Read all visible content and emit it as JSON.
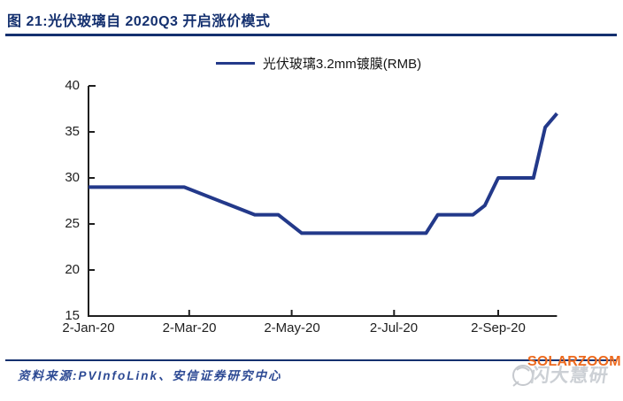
{
  "figure": {
    "title": "图 21:光伏玻璃自 2020Q3 开启涨价模式",
    "source": "资料来源:PVInfoLink、安信证券研究中心",
    "watermark_brand": "SOLARZOOM",
    "watermark_cn": "闪大慧研"
  },
  "colors": {
    "navy": "#14306f",
    "line_navy": "#23398a",
    "axis_black": "#1f1f1f",
    "source_navy": "#2d4a94",
    "watermark_orange": "#ed6a1e",
    "watermark_gray": "#ccd0d5"
  },
  "chart_data": {
    "type": "line",
    "title": "图 21:光伏玻璃自 2020Q3 开启涨价模式",
    "legend": [
      "光伏玻璃3.2mm镀膜(RMB)"
    ],
    "legend_position": "top-center",
    "grid": false,
    "ylim": [
      15,
      40
    ],
    "y_ticks": [
      40,
      35,
      30,
      25,
      20,
      15
    ],
    "y_tick_labels": [
      "40",
      "35",
      "30",
      "25",
      "20",
      "15"
    ],
    "x_ticks": [
      {
        "label": "2-Jan-20",
        "day": 0
      },
      {
        "label": "2-Mar-20",
        "day": 60
      },
      {
        "label": "2-May-20",
        "day": 121
      },
      {
        "label": "2-Jul-20",
        "day": 182
      },
      {
        "label": "2-Sep-20",
        "day": 244
      }
    ],
    "axis_end_day": 279,
    "series": [
      {
        "name": "光伏玻璃3.2mm镀膜(RMB)",
        "color": "#23398a",
        "points": [
          {
            "date": "2-Jan-20",
            "day": 0,
            "value": 29
          },
          {
            "date": "28-Feb-20",
            "day": 57,
            "value": 29
          },
          {
            "date": "10-Apr-20",
            "day": 99,
            "value": 26
          },
          {
            "date": "24-Apr-20",
            "day": 113,
            "value": 26
          },
          {
            "date": "8-May-20",
            "day": 127,
            "value": 24
          },
          {
            "date": "21-Jul-20",
            "day": 201,
            "value": 24
          },
          {
            "date": "28-Jul-20",
            "day": 208,
            "value": 26
          },
          {
            "date": "18-Aug-20",
            "day": 229,
            "value": 26
          },
          {
            "date": "25-Aug-20",
            "day": 236,
            "value": 27
          },
          {
            "date": "2-Sep-20",
            "day": 244,
            "value": 30
          },
          {
            "date": "23-Sep-20",
            "day": 265,
            "value": 30
          },
          {
            "date": "30-Sep-20",
            "day": 272,
            "value": 35.5
          },
          {
            "date": "9-Oct-20",
            "day": 279,
            "value": 37
          }
        ]
      }
    ]
  }
}
